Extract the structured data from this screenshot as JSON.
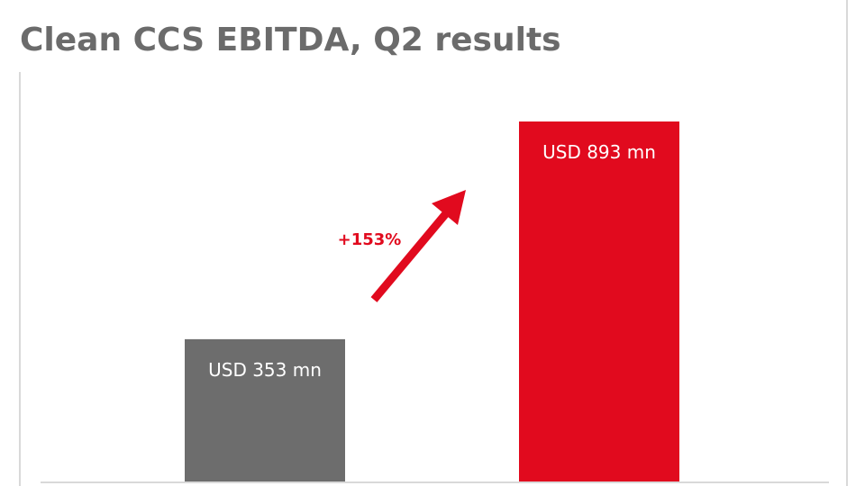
{
  "chart_data": {
    "type": "bar",
    "title": "Clean CCS EBITDA, Q2 results",
    "categories": [
      null,
      null
    ],
    "values": [
      353,
      893
    ],
    "value_labels": [
      "USD 353 mn",
      "USD 893 mn"
    ],
    "colors": [
      "#6d6d6d",
      "#e10a1e"
    ],
    "annotation": "+153%"
  }
}
